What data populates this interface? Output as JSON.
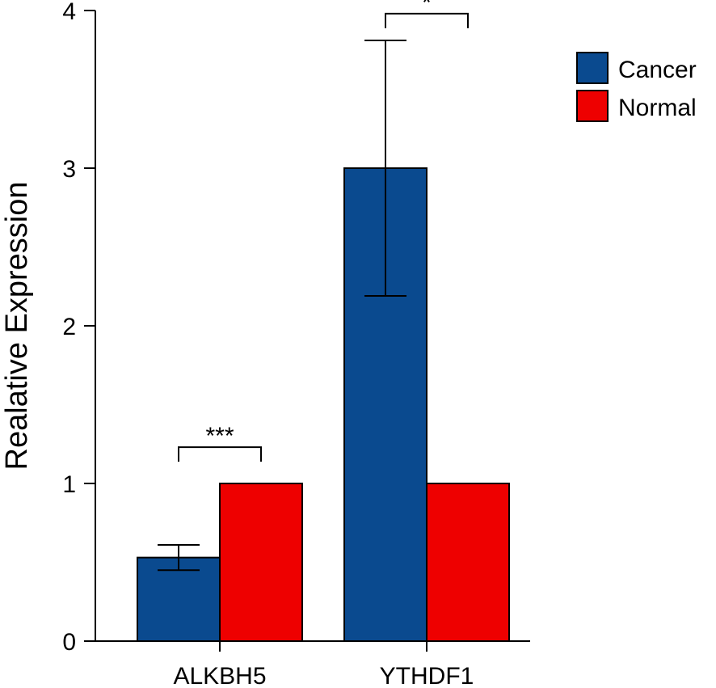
{
  "chart_data": {
    "type": "bar",
    "title": "",
    "xlabel": "",
    "ylabel": "Realative Expression",
    "ylim": [
      0,
      4
    ],
    "yticks": [
      "0",
      "1",
      "2",
      "3",
      "4"
    ],
    "categories": [
      "ALKBH5",
      "YTHDF1"
    ],
    "series": [
      {
        "name": "Cancer",
        "color": "#0a4a8f",
        "values": [
          0.53,
          3.0
        ],
        "error": [
          0.08,
          0.81
        ]
      },
      {
        "name": "Normal",
        "color": "#ee0000",
        "values": [
          1.0,
          1.0
        ],
        "error": [
          0,
          0
        ]
      }
    ],
    "significance": [
      {
        "category": "ALKBH5",
        "label": "***",
        "y": 1.23
      },
      {
        "category": "YTHDF1",
        "label": "*",
        "y": 3.98
      }
    ],
    "legend_position": "top-right",
    "grid": false
  }
}
